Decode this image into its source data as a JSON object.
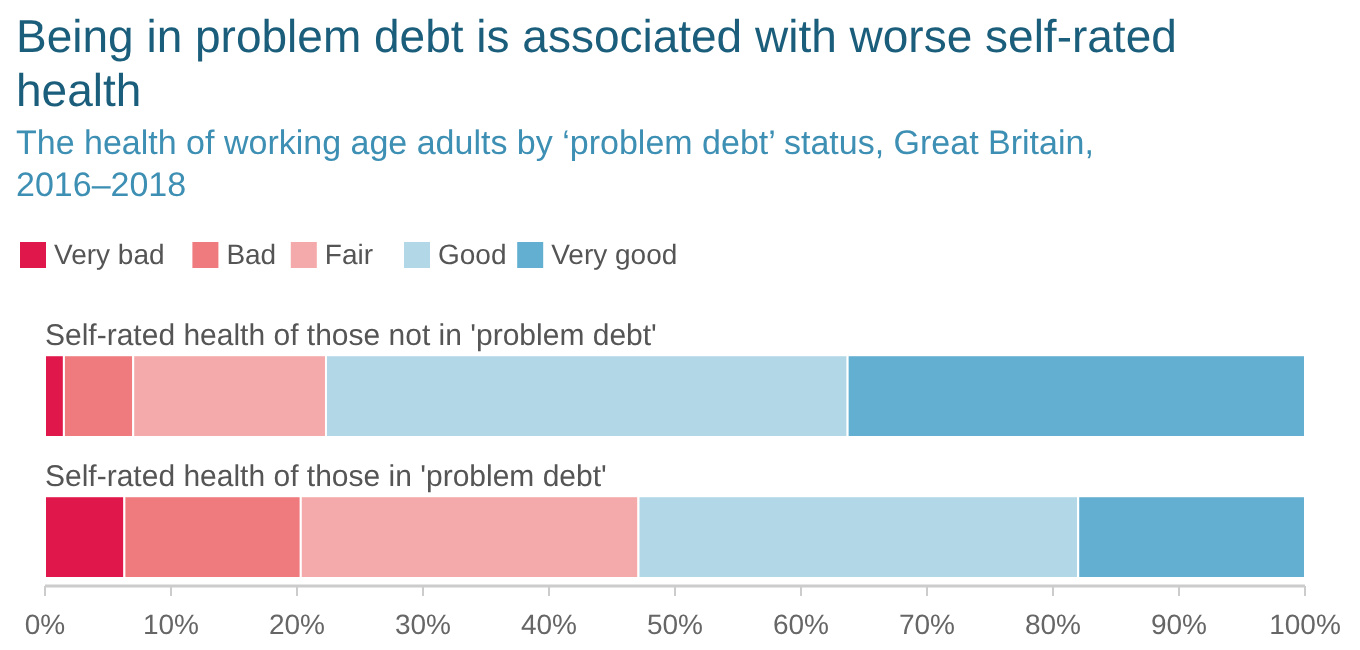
{
  "chart_data": {
    "type": "bar",
    "orientation": "horizontal",
    "stacked": true,
    "title": "Being in problem debt is associated with worse self-rated health",
    "subtitle": "The health of working age adults by ‘problem debt’ status, Great Britain, 2016–2018",
    "categories": [
      "Self-rated health of those not in 'problem debt'",
      "Self-rated health of those in 'problem debt'"
    ],
    "series": [
      {
        "name": "Very bad",
        "color": "#e0174a",
        "values": [
          1.5,
          6.3
        ]
      },
      {
        "name": "Bad",
        "color": "#ef7b7e",
        "values": [
          5.5,
          14.0
        ]
      },
      {
        "name": "Fair",
        "color": "#f4aaaa",
        "values": [
          15.3,
          26.8
        ]
      },
      {
        "name": "Good",
        "color": "#b2d8e8",
        "values": [
          41.4,
          34.9
        ]
      },
      {
        "name": "Very good",
        "color": "#63afd1",
        "values": [
          36.3,
          18.0
        ]
      }
    ],
    "xlim": [
      0,
      100
    ],
    "xticks": [
      {
        "value": 0,
        "label": "0%"
      },
      {
        "value": 10,
        "label": "10%"
      },
      {
        "value": 20,
        "label": "20%"
      },
      {
        "value": 30,
        "label": "30%"
      },
      {
        "value": 40,
        "label": "40%"
      },
      {
        "value": 50,
        "label": "50%"
      },
      {
        "value": 60,
        "label": "60%"
      },
      {
        "value": 70,
        "label": "70%"
      },
      {
        "value": 80,
        "label": "80%"
      },
      {
        "value": 90,
        "label": "90%"
      },
      {
        "value": 100,
        "label": "100%"
      }
    ],
    "legend": "top left",
    "grid": false
  }
}
